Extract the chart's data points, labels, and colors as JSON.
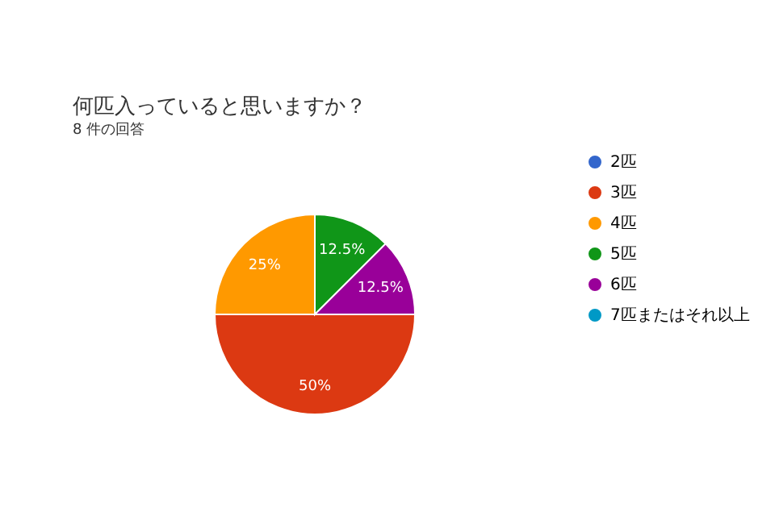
{
  "chart_data": {
    "type": "pie",
    "title": "何匹入っていると思いますか？",
    "subtitle": "8 件の回答",
    "categories": [
      "2匹",
      "3匹",
      "4匹",
      "5匹",
      "6匹",
      "7匹またはそれ以上"
    ],
    "values": [
      0,
      50,
      25,
      12.5,
      12.5,
      0
    ],
    "colors": [
      "#3366cc",
      "#dc3912",
      "#ff9900",
      "#109618",
      "#990099",
      "#0099c6"
    ],
    "value_labels": [
      null,
      "50%",
      "25%",
      "12.5%",
      "12.5%",
      null
    ],
    "legend": "right"
  }
}
